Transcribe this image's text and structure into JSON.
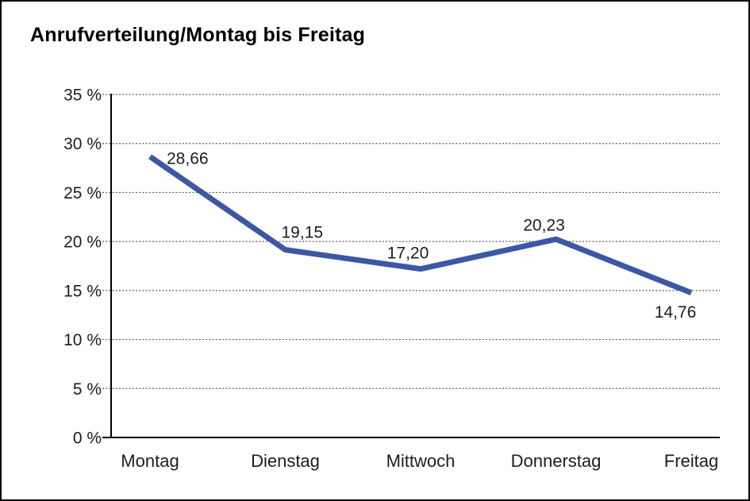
{
  "page": {
    "background_color": "#ffffff",
    "border_color": "#000000"
  },
  "chart_data": {
    "type": "line",
    "title": "Anrufverteilung/Montag bis Freitag",
    "categories": [
      "Montag",
      "Dienstag",
      "Mittwoch",
      "Donnerstag",
      "Freitag"
    ],
    "values": [
      28.66,
      19.15,
      17.2,
      20.23,
      14.76
    ],
    "value_labels": [
      "28,66",
      "19,15",
      "17,20",
      "20,23",
      "14,76"
    ],
    "unit": "%",
    "xlabel": "",
    "ylabel": "",
    "ylim": [
      0,
      35
    ],
    "y_tick_step": 5,
    "y_tick_labels_top_to_bottom": [
      "35 %",
      "30 %",
      "25 %",
      "20 %",
      "15 %",
      "10 %",
      "5 %",
      "0 %"
    ],
    "grid": "horizontal-dotted",
    "legend": "none",
    "line_color": "#3C58A4",
    "grid_color": "#5a5a5a",
    "axis_color": "#000000",
    "text_color": "#1d1d1d"
  }
}
